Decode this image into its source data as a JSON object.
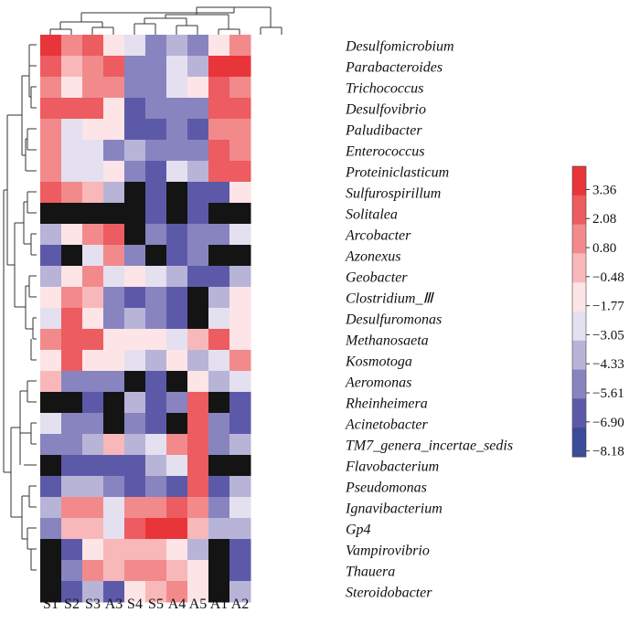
{
  "chart_data": {
    "type": "heatmap",
    "columns": [
      "S1",
      "S2",
      "S3",
      "A3",
      "S4",
      "S5",
      "A4",
      "A5",
      "A1",
      "A2"
    ],
    "rows": [
      "Desulfomicrobium",
      "Parabacteroides",
      "Trichococcus",
      "Desulfovibrio",
      "Paludibacter",
      "Enterococcus",
      "Proteiniclasticum",
      "Sulfurospirillum",
      "Solitalea",
      "Arcobacter",
      "Azonexus",
      "Geobacter",
      "Clostridium_Ⅲ",
      "Desulfuromonas",
      "Methanosaeta",
      "Kosmotoga",
      "Aeromonas",
      "Rheinheimera",
      "Acinetobacter",
      "TM7_genera_incertae_sedis",
      "Flavobacterium",
      "Pseudomonas",
      "Ignavibacterium",
      "Gp4",
      "Vampirovibrio",
      "Thauera",
      "Steroidobacter"
    ],
    "values": [
      [
        3.36,
        0.8,
        2.08,
        -1.77,
        -3.05,
        -5.61,
        -4.33,
        -5.61,
        -1.77,
        0.8
      ],
      [
        2.08,
        -0.48,
        0.8,
        2.08,
        -5.61,
        -5.61,
        -3.05,
        -4.33,
        3.36,
        3.36
      ],
      [
        0.8,
        -1.77,
        0.8,
        0.8,
        -5.61,
        -5.61,
        -3.05,
        -1.77,
        2.08,
        0.8
      ],
      [
        2.08,
        2.08,
        2.08,
        -1.77,
        -6.9,
        -5.61,
        -5.61,
        -5.61,
        2.08,
        2.08
      ],
      [
        0.8,
        -3.05,
        -1.77,
        -1.77,
        -6.9,
        -6.9,
        -5.61,
        -6.9,
        0.8,
        0.8
      ],
      [
        0.8,
        -3.05,
        -3.05,
        -5.61,
        -4.33,
        -5.61,
        -5.61,
        -5.61,
        2.08,
        0.8
      ],
      [
        0.8,
        -3.05,
        -3.05,
        -1.77,
        -5.61,
        -6.9,
        -3.05,
        -4.33,
        2.08,
        2.08
      ],
      [
        2.08,
        0.8,
        -0.48,
        -4.33,
        null,
        -6.9,
        null,
        -6.9,
        -6.9,
        -1.77
      ],
      [
        null,
        null,
        null,
        null,
        null,
        -6.9,
        null,
        -6.9,
        null,
        null
      ],
      [
        -4.33,
        -1.77,
        0.8,
        2.08,
        null,
        -5.61,
        -6.9,
        -5.61,
        -5.61,
        -3.05
      ],
      [
        -6.9,
        null,
        -3.05,
        0.8,
        -5.61,
        null,
        -6.9,
        -5.61,
        null,
        null
      ],
      [
        -4.33,
        -1.77,
        0.8,
        -3.05,
        -1.77,
        -3.05,
        -4.33,
        -6.9,
        -6.9,
        -4.33
      ],
      [
        -1.77,
        0.8,
        -0.48,
        -5.61,
        -6.9,
        -5.61,
        -6.9,
        null,
        -4.33,
        -1.77
      ],
      [
        -3.05,
        2.08,
        -1.77,
        -5.61,
        -4.33,
        -5.61,
        -6.9,
        null,
        -3.05,
        -1.77
      ],
      [
        0.8,
        2.08,
        2.08,
        -1.77,
        -1.77,
        -1.77,
        -3.05,
        -0.48,
        2.08,
        -1.77
      ],
      [
        -1.77,
        2.08,
        -1.77,
        -1.77,
        -3.05,
        -4.33,
        -1.77,
        -4.33,
        -3.05,
        0.8
      ],
      [
        -0.48,
        -5.61,
        -5.61,
        -5.61,
        null,
        -6.9,
        null,
        -1.77,
        -4.33,
        -3.05
      ],
      [
        null,
        null,
        -6.9,
        null,
        -4.33,
        -6.9,
        -5.61,
        2.08,
        null,
        -6.9
      ],
      [
        -3.05,
        -5.61,
        -5.61,
        null,
        -5.61,
        -6.9,
        null,
        2.08,
        -5.61,
        -6.9
      ],
      [
        -5.61,
        -5.61,
        -4.33,
        -0.48,
        -4.33,
        -3.05,
        0.8,
        2.08,
        -5.61,
        -4.33
      ],
      [
        null,
        -6.9,
        -6.9,
        -6.9,
        -6.9,
        -4.33,
        -3.05,
        2.08,
        null,
        null
      ],
      [
        -6.9,
        -4.33,
        -4.33,
        -5.61,
        -6.9,
        -5.61,
        -6.9,
        2.08,
        -6.9,
        -4.33
      ],
      [
        -4.33,
        0.8,
        0.8,
        -3.05,
        0.8,
        0.8,
        2.08,
        0.8,
        -5.61,
        -3.05
      ],
      [
        -5.61,
        -0.48,
        -0.48,
        -3.05,
        2.08,
        3.36,
        3.36,
        -0.48,
        -4.33,
        -4.33
      ],
      [
        null,
        -6.9,
        -1.77,
        -0.48,
        -0.48,
        -0.48,
        -1.77,
        -4.33,
        null,
        -6.9
      ],
      [
        null,
        -5.61,
        0.8,
        -0.48,
        0.8,
        0.8,
        -0.48,
        -1.77,
        null,
        -6.9
      ],
      [
        null,
        -6.9,
        -4.33,
        -6.9,
        -1.77,
        -0.48,
        0.8,
        -1.77,
        null,
        -4.33
      ]
    ],
    "missing_color": "#141414",
    "colorbar": {
      "ticks": [
        "3.36",
        "2.08",
        "0.80",
        "−0.48",
        "−1.77",
        "−3.05",
        "−4.33",
        "−5.61",
        "−6.90",
        "−8.18"
      ],
      "colors": [
        "#e8353a",
        "#ec5c60",
        "#f28a8c",
        "#f8b8ba",
        "#fde4e6",
        "#e4e0f0",
        "#b8b4d8",
        "#8884c0",
        "#5c5aa8",
        "#3b4c98"
      ]
    }
  }
}
